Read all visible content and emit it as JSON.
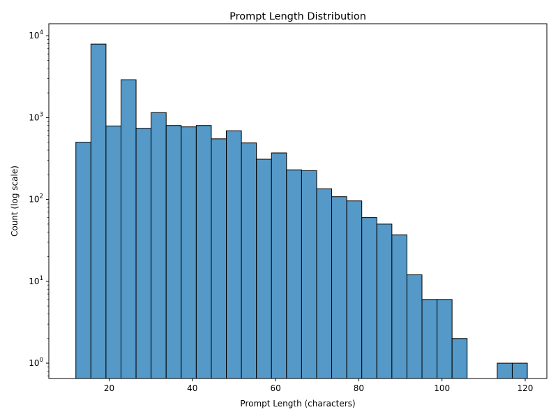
{
  "chart_data": {
    "type": "bar",
    "title": "Prompt Length Distribution",
    "xlabel": "Prompt Length (characters)",
    "ylabel": "Count (log scale)",
    "xlim": [
      5.5,
      125.2
    ],
    "ylim": [
      0.65,
      14000
    ],
    "yscale": "log",
    "grid": false,
    "legend": "none",
    "bar_color": "#5499c7",
    "edge_color": "#000000",
    "bin_start": 12.0,
    "bin_width": 3.617,
    "x_ticks": [
      20,
      40,
      60,
      80,
      100,
      120
    ],
    "x_tick_labels": [
      "20",
      "40",
      "60",
      "80",
      "100",
      "120"
    ],
    "y_ticks": [
      1,
      10,
      100,
      1000,
      10000
    ],
    "y_tick_labels": [
      {
        "base": "10",
        "exp": "0"
      },
      {
        "base": "10",
        "exp": "1"
      },
      {
        "base": "10",
        "exp": "2"
      },
      {
        "base": "10",
        "exp": "3"
      },
      {
        "base": "10",
        "exp": "4"
      }
    ],
    "values": [
      500,
      7900,
      790,
      2900,
      740,
      1150,
      800,
      770,
      800,
      550,
      690,
      490,
      310,
      370,
      230,
      225,
      135,
      108,
      96,
      60,
      50,
      37,
      12,
      6,
      6,
      2,
      0,
      0,
      1,
      1
    ]
  }
}
